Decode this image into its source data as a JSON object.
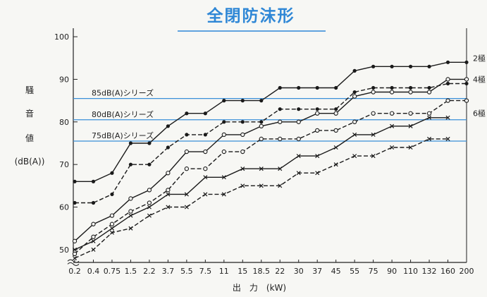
{
  "chart_data": {
    "type": "line",
    "title": "全閉防沫形",
    "xlabel": "出　力　(kW)",
    "ylabel_chars": [
      "騒",
      "音",
      "値"
    ],
    "ylabel_unit": "(dB(A))",
    "categories": [
      "0.2",
      "0.4",
      "0.75",
      "1.5",
      "2.2",
      "3.7",
      "5.5",
      "7.5",
      "11",
      "15",
      "18.5",
      "22",
      "30",
      "37",
      "45",
      "55",
      "75",
      "90",
      "110",
      "132",
      "160",
      "200"
    ],
    "x_tick_labels": [
      "0.2",
      "0.4",
      "0.75",
      "1.5",
      "2.2",
      "3.7",
      "5.5",
      "7.5",
      "11",
      "15",
      "18.5",
      "22",
      "30",
      "37",
      "45",
      "55",
      "75",
      "90",
      "110",
      "132",
      "160",
      "200"
    ],
    "y_ticks": [
      50,
      60,
      70,
      80,
      90,
      100
    ],
    "ylim": [
      47,
      102
    ],
    "reference_lines": [
      {
        "label": "85dB(A)シリーズ",
        "value": 85.5,
        "color": "#3a8fd8"
      },
      {
        "label": "80dB(A)シリーズ",
        "value": 80.5,
        "color": "#3a8fd8"
      },
      {
        "label": "75dB(A)シリーズ",
        "value": 75.5,
        "color": "#3a8fd8"
      }
    ],
    "pole_labels": [
      {
        "text": "2極",
        "value": 95
      },
      {
        "text": "4極",
        "value": 90
      },
      {
        "text": "6極",
        "value": 82
      }
    ],
    "series": [
      {
        "style": "solid",
        "marker": "dot",
        "values": [
          66,
          66,
          68,
          75,
          75,
          79,
          82,
          82,
          85,
          85,
          85,
          88,
          88,
          88,
          88,
          92,
          93,
          93,
          93,
          93,
          94,
          94
        ]
      },
      {
        "style": "dashed",
        "marker": "dot",
        "values": [
          61,
          61,
          63,
          70,
          70,
          74,
          77,
          77,
          80,
          80,
          80,
          83,
          83,
          83,
          83,
          87,
          88,
          88,
          88,
          88,
          89,
          89
        ]
      },
      {
        "style": "solid",
        "marker": "circle",
        "values": [
          52,
          56,
          58,
          62,
          64,
          68,
          73,
          73,
          77,
          77,
          79,
          80,
          80,
          82,
          82,
          86,
          87,
          87,
          87,
          87,
          90,
          90
        ]
      },
      {
        "style": "dashed",
        "marker": "circle",
        "values": [
          49,
          53,
          56,
          59,
          61,
          64,
          69,
          69,
          73,
          73,
          76,
          76,
          76,
          78,
          78,
          80,
          82,
          82,
          82,
          82,
          85,
          85
        ]
      },
      {
        "style": "solid",
        "marker": "x",
        "values": [
          50,
          52,
          55,
          58,
          60,
          63,
          63,
          67,
          67,
          69,
          69,
          69,
          72,
          72,
          74,
          77,
          77,
          79,
          79,
          81,
          81,
          null
        ]
      },
      {
        "style": "dashed",
        "marker": "x",
        "values": [
          48,
          50,
          54,
          55,
          58,
          60,
          60,
          63,
          63,
          65,
          65,
          65,
          68,
          68,
          70,
          72,
          72,
          74,
          74,
          76,
          76,
          null
        ]
      }
    ]
  }
}
